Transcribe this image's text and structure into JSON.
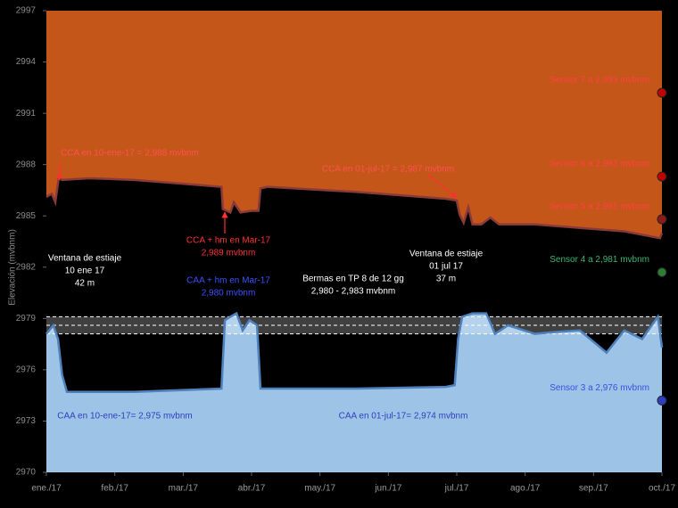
{
  "chart_data": {
    "type": "area",
    "y_label": "Elevación (mvbnm)",
    "xlim": [
      0,
      9
    ],
    "xticks": [
      {
        "value": 0,
        "label": "ene./17"
      },
      {
        "value": 1,
        "label": "feb./17"
      },
      {
        "value": 2,
        "label": "mar./17"
      },
      {
        "value": 3,
        "label": "abr./17"
      },
      {
        "value": 4,
        "label": "may./17"
      },
      {
        "value": 5,
        "label": "jun./17"
      },
      {
        "value": 6,
        "label": "jul./17"
      },
      {
        "value": 7,
        "label": "ago./17"
      },
      {
        "value": 8,
        "label": "sep./17"
      },
      {
        "value": 9,
        "label": "oct./17"
      }
    ],
    "ylim": [
      2970,
      2997
    ],
    "yticks": [
      2970,
      2973,
      2976,
      2979,
      2982,
      2985,
      2988,
      2991,
      2994,
      2997
    ],
    "series": [
      {
        "side": "top",
        "color": "#8b3a3a",
        "fill": "#c4561a",
        "x": [
          0,
          0.08,
          0.13,
          0.18,
          0.23,
          0.63,
          1.28,
          1.93,
          2.56,
          2.58,
          2.69,
          2.74,
          2.84,
          3.0,
          3.1,
          3.13,
          3.23,
          4.54,
          5.84,
          6.0,
          6.04,
          6.1,
          6.17,
          6.23,
          6.36,
          6.49,
          6.62,
          7.14,
          7.8,
          8.45,
          8.97,
          9.0
        ],
        "values": [
          2986.1,
          2986.3,
          2985.8,
          2987.2,
          2987.1,
          2987.2,
          2987.1,
          2986.9,
          2986.7,
          2985.4,
          2985.2,
          2985.8,
          2985.2,
          2985.3,
          2985.3,
          2986.6,
          2986.7,
          2986.4,
          2986.0,
          2985.9,
          2985.1,
          2984.6,
          2985.5,
          2984.5,
          2984.5,
          2984.9,
          2984.5,
          2984.5,
          2984.3,
          2984.1,
          2983.7,
          2984.0
        ]
      },
      {
        "side": "bottom",
        "color": "#4f81bd",
        "fill": "#9dc3e6",
        "x": [
          0,
          0.1,
          0.17,
          0.23,
          0.3,
          0.63,
          1.28,
          1.93,
          2.56,
          2.61,
          2.69,
          2.78,
          2.87,
          2.97,
          3.08,
          3.13,
          3.23,
          4.54,
          5.84,
          5.97,
          6.02,
          6.08,
          6.23,
          6.43,
          6.56,
          6.75,
          7.14,
          7.41,
          7.8,
          8.19,
          8.45,
          8.71,
          8.94,
          9.0
        ],
        "values": [
          2978.1,
          2978.6,
          2977.8,
          2975.7,
          2974.7,
          2974.7,
          2974.7,
          2974.8,
          2974.9,
          2978.9,
          2979.1,
          2979.3,
          2978.3,
          2978.9,
          2978.6,
          2974.9,
          2974.9,
          2974.9,
          2975.0,
          2975.1,
          2977.8,
          2979.1,
          2979.3,
          2979.3,
          2978.1,
          2978.6,
          2978.1,
          2978.2,
          2978.3,
          2977.0,
          2978.3,
          2977.8,
          2979.1,
          2977.3
        ]
      }
    ],
    "ref_lines": [
      2979.1,
      2978.6,
      2978.1
    ],
    "sensors": [
      {
        "label": "Sensor 7 a 2,993 mvbnm",
        "value": 2992.2,
        "color": "#c00000",
        "text_color": "#ff4040"
      },
      {
        "label": "Sensor 6 a 2,992 mvbnm",
        "value": 2987.3,
        "color": "#c00000",
        "text_color": "#ff4040"
      },
      {
        "label": "Sensor 5 a 2,991 mvbnm",
        "value": 2984.8,
        "color": "#8b1a1a",
        "text_color": "#ff4040"
      },
      {
        "label": "Sensor 4 a 2,981 mvbnm",
        "value": 2981.7,
        "color": "#2e7d32",
        "text_color": "#3cb371"
      },
      {
        "label": "Sensor 3 a 2,976 mvbnm",
        "value": 2974.2,
        "color": "#2f3fbf",
        "text_color": "#3a50e0"
      }
    ],
    "annotations": [
      {
        "lines": [
          "CCA en 10-ene-17 = 2,988 mvbnm"
        ],
        "color": "#ff5050"
      },
      {
        "lines": [
          "CCA + hm en Mar-17",
          "2,989 mvbnm"
        ],
        "color": "#ff3030"
      },
      {
        "lines": [
          "CCA en 01-jul-17 = 2,987 mvbnm"
        ],
        "color": "#ff5050"
      },
      {
        "lines": [
          "CAA + hm en Mar-17",
          "2,980 mvbnm"
        ],
        "color": "#3a50ff"
      },
      {
        "lines": [
          "CAA en 10-ene-17= 2,975 mvbnm"
        ],
        "color": "#2f3fbf"
      },
      {
        "lines": [
          "CAA en 01-jul-17= 2,974 mvbnm"
        ],
        "color": "#2f3fbf"
      },
      {
        "lines": [
          "Ventana de estiaje",
          "10 ene 17",
          "42 m"
        ],
        "color": "#ffffff"
      },
      {
        "lines": [
          "Bermas en TP 8 de 12 gg",
          "2,980 - 2,983 mvbnm"
        ],
        "color": "#ffffff"
      },
      {
        "lines": [
          "Ventana de estiaje",
          "01 jul 17",
          "37 m"
        ],
        "color": "#ffffff"
      }
    ]
  }
}
